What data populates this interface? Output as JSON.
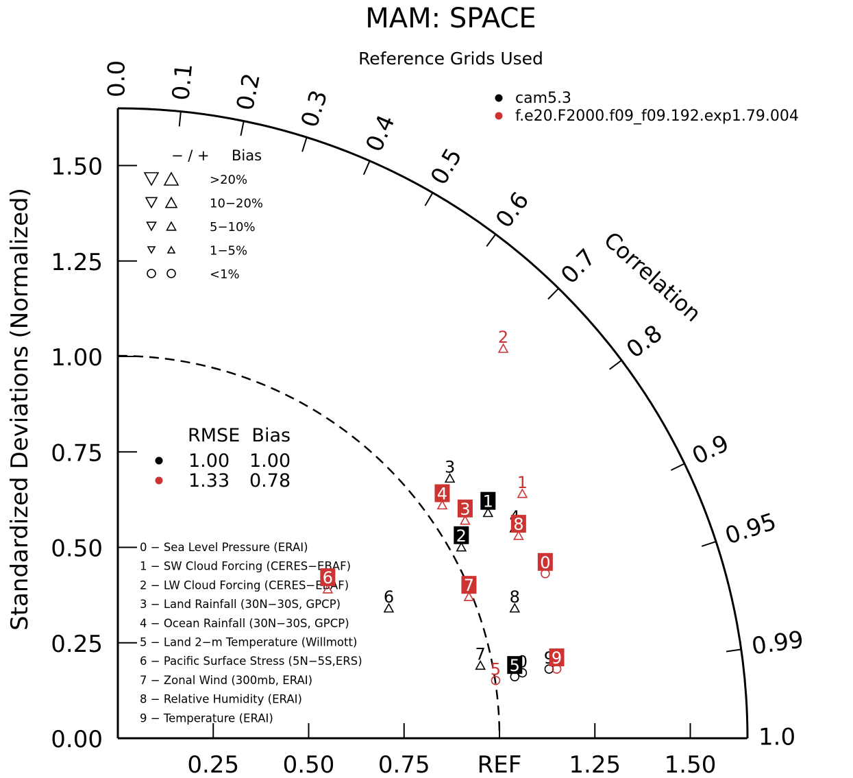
{
  "chart_data": {
    "type": "taylor",
    "title": "MAM: SPACE",
    "subtitle": "Reference Grids Used",
    "ylabel": "Standardized Deviations (Normalized)",
    "corr_label": "Correlation",
    "ref_label": "REF",
    "std_ticks_y": [
      "0.00",
      "0.25",
      "0.50",
      "0.75",
      "1.00",
      "1.25",
      "1.50"
    ],
    "std_ticks_x": [
      "0.25",
      "0.50",
      "0.75",
      "REF",
      "1.25",
      "1.50"
    ],
    "corr_ticks": [
      "0.0",
      "0.1",
      "0.2",
      "0.3",
      "0.4",
      "0.5",
      "0.6",
      "0.7",
      "0.8",
      "0.9",
      "0.95",
      "0.99",
      "1.0"
    ],
    "std_max": 1.65,
    "cases": [
      {
        "name": "cam5.3",
        "color": "#000000"
      },
      {
        "name": "f.e20.F2000.f09_f09.192.exp1.79.004",
        "color": "#cc3333"
      }
    ],
    "bias_legend": {
      "header_sign": "− / +",
      "header_label": "Bias",
      "rows": [
        ">20%",
        "10−20%",
        "5−10%",
        "1−5%",
        "<1%"
      ]
    },
    "rmse_legend": {
      "header": "RMSE  Bias",
      "rows": [
        {
          "rmse": "1.00",
          "bias": "1.00"
        },
        {
          "rmse": "1.33",
          "bias": "0.78"
        }
      ]
    },
    "variables": [
      "0 − Sea Level Pressure (ERAI)",
      "1 − SW Cloud Forcing (CERES−EBAF)",
      "2 − LW Cloud Forcing (CERES−EBAF)",
      "3 − Land Rainfall (30N−30S, GPCP)",
      "4 − Ocean Rainfall (30N−30S, GPCP)",
      "5 − Land 2−m Temperature (Willmott)",
      "6 − Pacific Surface Stress (5N−5S,ERS)",
      "7 − Zonal Wind (300mb, ERAI)",
      "8 − Relative Humidity (ERAI)",
      "9 − Temperature (ERAI)"
    ],
    "points": [
      {
        "case": 0,
        "label": "0",
        "x": 1.06,
        "y": 0.2,
        "marker": "circle",
        "boxed": false
      },
      {
        "case": 0,
        "label": "1",
        "x": 0.97,
        "y": 0.62,
        "marker": "tri-up",
        "boxed": true
      },
      {
        "case": 0,
        "label": "2",
        "x": 0.9,
        "y": 0.53,
        "marker": "tri-up",
        "boxed": true
      },
      {
        "case": 0,
        "label": "3",
        "x": 0.87,
        "y": 0.71,
        "marker": "tri-up",
        "boxed": false
      },
      {
        "case": 0,
        "label": "4",
        "x": 1.04,
        "y": 0.58,
        "marker": "tri-up",
        "boxed": false
      },
      {
        "case": 0,
        "label": "5",
        "x": 1.04,
        "y": 0.19,
        "marker": "circle",
        "boxed": true
      },
      {
        "case": 0,
        "label": "6",
        "x": 0.71,
        "y": 0.37,
        "marker": "tri-up",
        "boxed": false
      },
      {
        "case": 0,
        "label": "7",
        "x": 0.95,
        "y": 0.22,
        "marker": "tri-up",
        "boxed": false
      },
      {
        "case": 0,
        "label": "8",
        "x": 1.04,
        "y": 0.37,
        "marker": "tri-up",
        "boxed": false
      },
      {
        "case": 0,
        "label": "9",
        "x": 1.13,
        "y": 0.21,
        "marker": "circle",
        "boxed": false
      },
      {
        "case": 1,
        "label": "0",
        "x": 1.12,
        "y": 0.46,
        "marker": "circle",
        "boxed": true
      },
      {
        "case": 1,
        "label": "1",
        "x": 1.06,
        "y": 0.67,
        "marker": "tri-up",
        "boxed": false
      },
      {
        "case": 1,
        "label": "2",
        "x": 1.01,
        "y": 1.05,
        "marker": "tri-up",
        "boxed": false
      },
      {
        "case": 1,
        "label": "3",
        "x": 0.91,
        "y": 0.6,
        "marker": "tri-up",
        "boxed": true
      },
      {
        "case": 1,
        "label": "4",
        "x": 0.85,
        "y": 0.64,
        "marker": "tri-up",
        "boxed": true
      },
      {
        "case": 1,
        "label": "5",
        "x": 0.99,
        "y": 0.18,
        "marker": "circle",
        "boxed": false
      },
      {
        "case": 1,
        "label": "6",
        "x": 0.55,
        "y": 0.42,
        "marker": "tri-up",
        "boxed": true
      },
      {
        "case": 1,
        "label": "7",
        "x": 0.92,
        "y": 0.4,
        "marker": "tri-up",
        "boxed": true
      },
      {
        "case": 1,
        "label": "8",
        "x": 1.05,
        "y": 0.56,
        "marker": "tri-up",
        "boxed": true
      },
      {
        "case": 1,
        "label": "9",
        "x": 1.15,
        "y": 0.21,
        "marker": "circle",
        "boxed": true
      }
    ]
  }
}
